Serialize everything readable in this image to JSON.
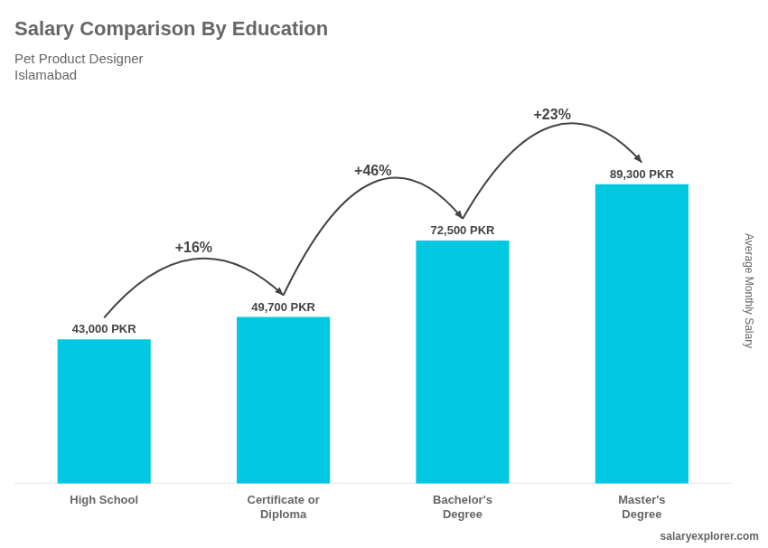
{
  "chart_data": {
    "type": "bar",
    "title": "Salary Comparison By Education",
    "subtitle": [
      "Pet Product Designer",
      "Islamabad"
    ],
    "ylabel": "Average Monthly Salary",
    "categories": [
      "High School",
      "Certificate or\nDiploma",
      "Bachelor's\nDegree",
      "Master's\nDegree"
    ],
    "values": [
      43000,
      49700,
      72500,
      89300
    ],
    "value_labels": [
      "43,000 PKR",
      "49,700 PKR",
      "72,500 PKR",
      "89,300 PKR"
    ],
    "data_labels": true,
    "color": "#00c8e0",
    "ylim": [
      0,
      115000
    ],
    "grid": false,
    "tick_labels": "x",
    "annotations": [
      {
        "text": "+16%",
        "from": "High School",
        "to": "Certificate or\nDiploma"
      },
      {
        "text": "+46%",
        "from": "Certificate or\nDiploma",
        "to": "Bachelor's\nDegree"
      },
      {
        "text": "+23%",
        "from": "Bachelor's\nDegree",
        "to": "Master's\nDegree"
      }
    ],
    "source": "salaryexplorer.com"
  }
}
